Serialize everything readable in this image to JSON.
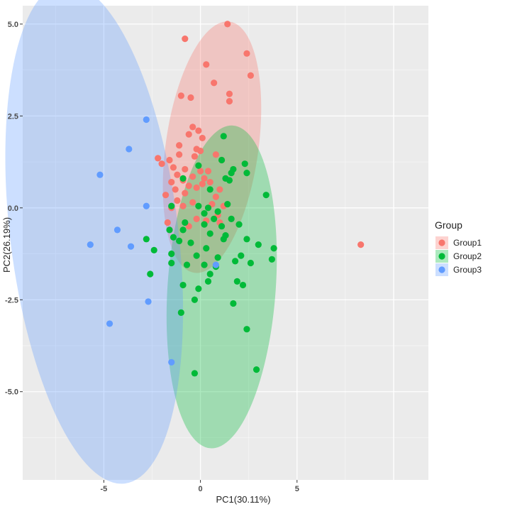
{
  "chart_data": {
    "type": "scatter",
    "xlabel": "PC1(30.11%)",
    "ylabel": "PC2(26.19%)",
    "xlim": [
      -9.2,
      11.8
    ],
    "ylim": [
      -7.4,
      5.5
    ],
    "x_ticks": [
      -5,
      0,
      5
    ],
    "x_tick_labels": [
      "-5",
      "0",
      "5"
    ],
    "y_ticks": [
      -5,
      -2.5,
      0,
      2.5,
      5
    ],
    "y_tick_labels": [
      "-5.0",
      "-2.5",
      "0.0",
      "2.5",
      "5.0"
    ],
    "grid": true,
    "legend": {
      "title": "Group",
      "position": "right",
      "entries": [
        {
          "label": "Group1",
          "color": "#F8766D"
        },
        {
          "label": "Group2",
          "color": "#00BA38"
        },
        {
          "label": "Group3",
          "color": "#619CFF"
        }
      ]
    },
    "ellipses": [
      {
        "group": "Group1",
        "color": "#F8766D",
        "center": [
          0.6,
          1.65
        ],
        "rx": 2.4,
        "ry": 3.45,
        "rotation_deg": 8
      },
      {
        "group": "Group2",
        "color": "#00BA38",
        "center": [
          1.1,
          -2.15
        ],
        "rx": 2.8,
        "ry": 4.4,
        "rotation_deg": 4
      },
      {
        "group": "Group3",
        "color": "#619CFF",
        "center": [
          -5.5,
          -0.7
        ],
        "rx": 4.35,
        "ry": 6.85,
        "rotation_deg": -7
      }
    ],
    "series": [
      {
        "name": "Group1",
        "color": "#F8766D",
        "points": [
          [
            1.4,
            5.0
          ],
          [
            -0.8,
            4.6
          ],
          [
            2.4,
            4.2
          ],
          [
            0.3,
            3.9
          ],
          [
            2.6,
            3.6
          ],
          [
            0.7,
            3.4
          ],
          [
            1.5,
            3.1
          ],
          [
            -1.0,
            3.05
          ],
          [
            -0.5,
            3.0
          ],
          [
            1.5,
            2.9
          ],
          [
            -0.4,
            2.2
          ],
          [
            -0.1,
            2.1
          ],
          [
            -0.6,
            2.0
          ],
          [
            0.1,
            1.9
          ],
          [
            -1.1,
            1.7
          ],
          [
            -0.2,
            1.6
          ],
          [
            0.0,
            1.55
          ],
          [
            -1.1,
            1.45
          ],
          [
            -0.3,
            1.4
          ],
          [
            0.8,
            1.45
          ],
          [
            -2.2,
            1.35
          ],
          [
            -1.6,
            1.3
          ],
          [
            1.1,
            1.3
          ],
          [
            -2.0,
            1.2
          ],
          [
            -1.4,
            1.1
          ],
          [
            -0.8,
            1.05
          ],
          [
            0.0,
            1.0
          ],
          [
            0.4,
            1.0
          ],
          [
            -1.2,
            0.9
          ],
          [
            -0.4,
            0.85
          ],
          [
            0.2,
            0.8
          ],
          [
            -0.9,
            0.75
          ],
          [
            -1.5,
            0.7
          ],
          [
            0.5,
            0.7
          ],
          [
            0.1,
            0.65
          ],
          [
            -0.6,
            0.6
          ],
          [
            -0.2,
            0.55
          ],
          [
            -1.3,
            0.5
          ],
          [
            1.0,
            0.5
          ],
          [
            -0.8,
            0.4
          ],
          [
            -1.8,
            0.35
          ],
          [
            0.8,
            0.3
          ],
          [
            -1.2,
            0.2
          ],
          [
            -0.4,
            0.15
          ],
          [
            0.6,
            0.1
          ],
          [
            -0.9,
            0.05
          ],
          [
            1.2,
            0.05
          ],
          [
            -1.5,
            0.0
          ],
          [
            0.9,
            -0.2
          ],
          [
            -0.2,
            -0.3
          ],
          [
            0.3,
            -0.35
          ],
          [
            1.0,
            -0.4
          ],
          [
            -1.7,
            -0.4
          ],
          [
            -0.6,
            -0.5
          ],
          [
            8.3,
            -1.0
          ]
        ]
      },
      {
        "name": "Group2",
        "color": "#00BA38",
        "points": [
          [
            1.2,
            1.95
          ],
          [
            1.1,
            1.3
          ],
          [
            2.3,
            1.2
          ],
          [
            -0.1,
            1.15
          ],
          [
            1.7,
            1.05
          ],
          [
            1.6,
            0.95
          ],
          [
            2.4,
            0.95
          ],
          [
            -0.9,
            0.8
          ],
          [
            1.3,
            0.8
          ],
          [
            1.5,
            0.75
          ],
          [
            0.5,
            0.5
          ],
          [
            3.4,
            0.35
          ],
          [
            -1.5,
            0.05
          ],
          [
            -0.1,
            0.05
          ],
          [
            0.4,
            0.0
          ],
          [
            1.4,
            0.1
          ],
          [
            0.9,
            -0.1
          ],
          [
            0.2,
            -0.15
          ],
          [
            0.7,
            -0.3
          ],
          [
            1.6,
            -0.3
          ],
          [
            -0.8,
            -0.4
          ],
          [
            0.2,
            -0.45
          ],
          [
            1.1,
            -0.5
          ],
          [
            2.0,
            -0.45
          ],
          [
            -0.9,
            -0.6
          ],
          [
            -1.6,
            -0.6
          ],
          [
            0.5,
            -0.7
          ],
          [
            1.3,
            -0.75
          ],
          [
            -1.4,
            -0.8
          ],
          [
            -2.8,
            -0.85
          ],
          [
            2.4,
            -0.85
          ],
          [
            1.2,
            -0.85
          ],
          [
            -1.1,
            -0.9
          ],
          [
            -0.5,
            -0.95
          ],
          [
            3.0,
            -1.0
          ],
          [
            0.3,
            -1.1
          ],
          [
            -2.4,
            -1.15
          ],
          [
            3.8,
            -1.1
          ],
          [
            -1.5,
            -1.25
          ],
          [
            -0.2,
            -1.3
          ],
          [
            2.1,
            -1.3
          ],
          [
            0.9,
            -1.35
          ],
          [
            1.8,
            -1.45
          ],
          [
            -1.5,
            -1.5
          ],
          [
            0.2,
            -1.55
          ],
          [
            2.6,
            -1.5
          ],
          [
            3.7,
            -1.4
          ],
          [
            0.8,
            -1.6
          ],
          [
            -0.7,
            -1.55
          ],
          [
            -2.6,
            -1.8
          ],
          [
            0.5,
            -1.8
          ],
          [
            1.9,
            -2.0
          ],
          [
            -0.9,
            -2.1
          ],
          [
            2.2,
            -2.1
          ],
          [
            0.4,
            -2.0
          ],
          [
            -0.1,
            -2.2
          ],
          [
            -0.3,
            -2.5
          ],
          [
            1.7,
            -2.6
          ],
          [
            -1.0,
            -2.85
          ],
          [
            2.4,
            -3.3
          ],
          [
            2.9,
            -4.4
          ],
          [
            -0.3,
            -4.5
          ]
        ]
      },
      {
        "name": "Group3",
        "color": "#619CFF",
        "points": [
          [
            -2.8,
            2.4
          ],
          [
            -3.7,
            1.6
          ],
          [
            -5.2,
            0.9
          ],
          [
            -2.8,
            0.05
          ],
          [
            -4.3,
            -0.6
          ],
          [
            -5.7,
            -1.0
          ],
          [
            -3.6,
            -1.05
          ],
          [
            0.8,
            -1.55
          ],
          [
            -2.7,
            -2.55
          ],
          [
            -4.7,
            -3.15
          ],
          [
            -1.5,
            -4.2
          ]
        ]
      }
    ]
  }
}
